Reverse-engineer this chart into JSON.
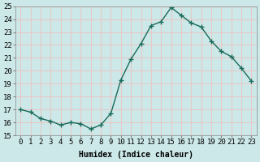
{
  "x": [
    0,
    1,
    2,
    3,
    4,
    5,
    6,
    7,
    8,
    9,
    10,
    11,
    12,
    13,
    14,
    15,
    16,
    17,
    18,
    19,
    20,
    21,
    22,
    23
  ],
  "y": [
    17.0,
    16.8,
    16.3,
    16.1,
    15.8,
    16.0,
    15.9,
    15.5,
    15.8,
    16.7,
    19.3,
    20.9,
    22.1,
    23.5,
    23.8,
    24.9,
    24.3,
    23.7,
    23.4,
    22.3,
    21.5,
    21.1,
    20.2,
    19.2
  ],
  "line_color": "#1a6b5a",
  "marker": "+",
  "marker_size": 4,
  "bg_color": "#cce8e8",
  "grid_color": "#e8c8c8",
  "xlabel": "Humidex (Indice chaleur)",
  "ylim": [
    15,
    25
  ],
  "xlim": [
    -0.5,
    23.5
  ],
  "yticks": [
    15,
    16,
    17,
    18,
    19,
    20,
    21,
    22,
    23,
    24,
    25
  ],
  "xticks": [
    0,
    1,
    2,
    3,
    4,
    5,
    6,
    7,
    8,
    9,
    10,
    11,
    12,
    13,
    14,
    15,
    16,
    17,
    18,
    19,
    20,
    21,
    22,
    23
  ],
  "xtick_labels": [
    "0",
    "1",
    "2",
    "3",
    "4",
    "5",
    "6",
    "7",
    "8",
    "9",
    "10",
    "11",
    "12",
    "13",
    "14",
    "15",
    "16",
    "17",
    "18",
    "19",
    "20",
    "21",
    "22",
    "23"
  ],
  "font_size": 6.5,
  "xlabel_fontsize": 7,
  "line_width": 1.0,
  "marker_linewidth": 1.0
}
